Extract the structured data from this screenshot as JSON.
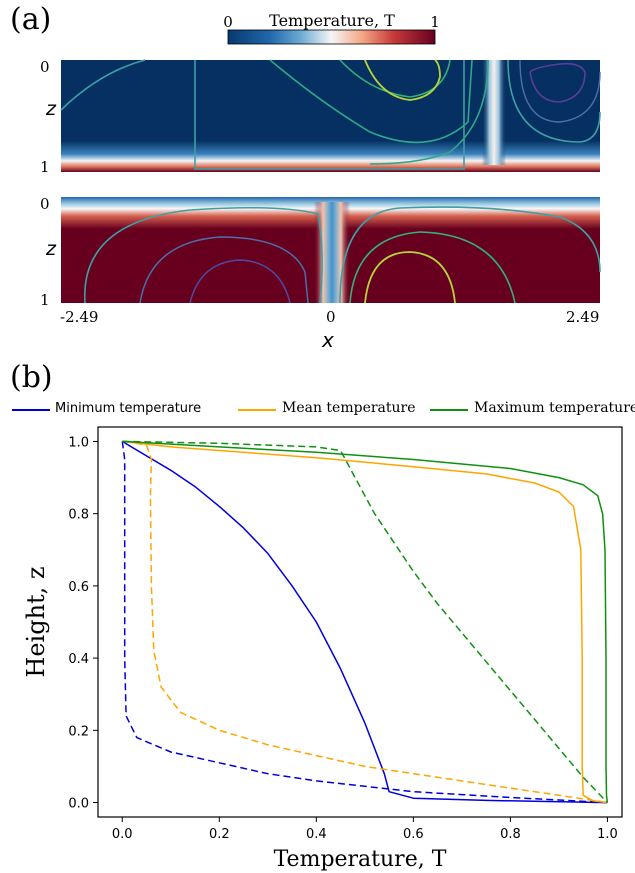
{
  "panel_a": {
    "label": "(a)",
    "colorbar": {
      "title": "Temperature, T",
      "min_label": "0",
      "max_label": "1"
    },
    "z_axis_label": "z",
    "x_axis_label": "x",
    "top_map": {
      "z_ticks": [
        "0",
        "1"
      ]
    },
    "bottom_map": {
      "z_ticks": [
        "0",
        "1"
      ]
    },
    "x_ticks": [
      "-2.49",
      "0",
      "2.49"
    ]
  },
  "panel_b": {
    "label": "(b)",
    "legend": [
      {
        "label": "Minimum temperature",
        "color": "#0000dd"
      },
      {
        "label": "Mean temperature",
        "color": "#ffa500"
      },
      {
        "label": "Maximum temperature",
        "color": "#109010"
      }
    ]
  },
  "chart_data": {
    "type": "line",
    "xlabel": "Temperature, T",
    "ylabel": "Height, z",
    "xlim": [
      -0.05,
      1.03
    ],
    "ylim": [
      -0.04,
      1.04
    ],
    "xticks": [
      0.0,
      0.2,
      0.4,
      0.6,
      0.8,
      1.0
    ],
    "yticks": [
      0.0,
      0.2,
      0.4,
      0.6,
      0.8,
      1.0
    ],
    "grid": false,
    "legend_position": "top",
    "series": [
      {
        "name": "Minimum temperature",
        "style": "solid",
        "color": "#0000dd",
        "points": [
          [
            0,
            1.0
          ],
          [
            0.05,
            0.96
          ],
          [
            0.1,
            0.92
          ],
          [
            0.15,
            0.875
          ],
          [
            0.2,
            0.82
          ],
          [
            0.25,
            0.76
          ],
          [
            0.3,
            0.69
          ],
          [
            0.35,
            0.6
          ],
          [
            0.4,
            0.5
          ],
          [
            0.45,
            0.37
          ],
          [
            0.5,
            0.22
          ],
          [
            0.54,
            0.08
          ],
          [
            0.55,
            0.03
          ],
          [
            0.6,
            0.012
          ],
          [
            0.75,
            0.006
          ],
          [
            1.0,
            0.0
          ]
        ]
      },
      {
        "name": "Minimum temperature",
        "style": "dashed",
        "color": "#0000dd",
        "points": [
          [
            0,
            1.0
          ],
          [
            0.005,
            0.95
          ],
          [
            0.005,
            0.4
          ],
          [
            0.008,
            0.24
          ],
          [
            0.03,
            0.18
          ],
          [
            0.1,
            0.14
          ],
          [
            0.2,
            0.11
          ],
          [
            0.3,
            0.08
          ],
          [
            0.4,
            0.06
          ],
          [
            0.5,
            0.045
          ],
          [
            0.6,
            0.03
          ],
          [
            0.7,
            0.022
          ],
          [
            0.8,
            0.014
          ],
          [
            0.9,
            0.007
          ],
          [
            1.0,
            0.0
          ]
        ]
      },
      {
        "name": "Mean temperature",
        "style": "solid",
        "color": "#ffa500",
        "points": [
          [
            0,
            1.0
          ],
          [
            0.1,
            0.985
          ],
          [
            0.2,
            0.975
          ],
          [
            0.4,
            0.955
          ],
          [
            0.6,
            0.93
          ],
          [
            0.75,
            0.91
          ],
          [
            0.85,
            0.885
          ],
          [
            0.9,
            0.86
          ],
          [
            0.93,
            0.82
          ],
          [
            0.945,
            0.7
          ],
          [
            0.948,
            0.4
          ],
          [
            0.948,
            0.1
          ],
          [
            0.95,
            0.02
          ],
          [
            0.97,
            0.005
          ],
          [
            1.0,
            0.0
          ]
        ]
      },
      {
        "name": "Mean temperature",
        "style": "dashed",
        "color": "#ffa500",
        "points": [
          [
            0.005,
            1.0
          ],
          [
            0.05,
            0.99
          ],
          [
            0.06,
            0.95
          ],
          [
            0.058,
            0.85
          ],
          [
            0.06,
            0.6
          ],
          [
            0.065,
            0.42
          ],
          [
            0.08,
            0.32
          ],
          [
            0.12,
            0.25
          ],
          [
            0.2,
            0.2
          ],
          [
            0.3,
            0.16
          ],
          [
            0.4,
            0.13
          ],
          [
            0.5,
            0.1
          ],
          [
            0.6,
            0.08
          ],
          [
            0.7,
            0.06
          ],
          [
            0.8,
            0.04
          ],
          [
            0.9,
            0.02
          ],
          [
            1.0,
            0.0
          ]
        ]
      },
      {
        "name": "Maximum temperature",
        "style": "solid",
        "color": "#109010",
        "points": [
          [
            0,
            1.0
          ],
          [
            0.2,
            0.985
          ],
          [
            0.4,
            0.97
          ],
          [
            0.6,
            0.95
          ],
          [
            0.8,
            0.925
          ],
          [
            0.9,
            0.9
          ],
          [
            0.95,
            0.88
          ],
          [
            0.98,
            0.85
          ],
          [
            0.99,
            0.8
          ],
          [
            0.995,
            0.7
          ],
          [
            0.997,
            0.4
          ],
          [
            0.997,
            0.1
          ],
          [
            0.998,
            0.02
          ],
          [
            1.0,
            0.0
          ]
        ]
      },
      {
        "name": "Maximum temperature",
        "style": "dashed",
        "color": "#109010",
        "points": [
          [
            0.0,
            1.0
          ],
          [
            0.2,
            0.995
          ],
          [
            0.4,
            0.985
          ],
          [
            0.45,
            0.975
          ],
          [
            0.46,
            0.95
          ],
          [
            0.48,
            0.9
          ],
          [
            0.52,
            0.8
          ],
          [
            0.56,
            0.72
          ],
          [
            0.6,
            0.64
          ],
          [
            0.65,
            0.55
          ],
          [
            0.7,
            0.47
          ],
          [
            0.75,
            0.39
          ],
          [
            0.8,
            0.31
          ],
          [
            0.85,
            0.23
          ],
          [
            0.9,
            0.15
          ],
          [
            0.95,
            0.07
          ],
          [
            1.0,
            0.0
          ]
        ]
      }
    ]
  }
}
